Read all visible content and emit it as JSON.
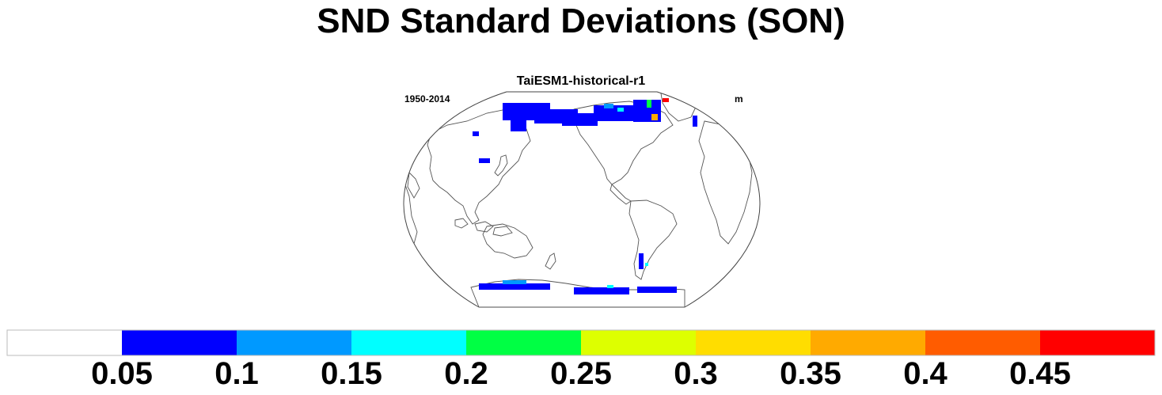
{
  "title": "SND Standard Deviations (SON)",
  "panel": {
    "title": "TaiESM1-historical-r1",
    "left_label": "1950-2014",
    "right_label": "m"
  },
  "map": {
    "projection": "robinson",
    "center_longitude": 180,
    "coastlines": true,
    "field_colors_present": [
      "#0000ff",
      "#0099ff",
      "#00ffff",
      "#00ff44",
      "#ffaa00",
      "#ff0000"
    ]
  },
  "colorbar": {
    "orientation": "horizontal",
    "colors": [
      "#ffffff",
      "#0000ff",
      "#0099ff",
      "#00ffff",
      "#00ff44",
      "#ddff00",
      "#ffdd00",
      "#ffaa00",
      "#ff5c00",
      "#ff0000"
    ],
    "labels": [
      "0.05",
      "0.1",
      "0.15",
      "0.2",
      "0.25",
      "0.3",
      "0.35",
      "0.4",
      "0.45"
    ]
  }
}
